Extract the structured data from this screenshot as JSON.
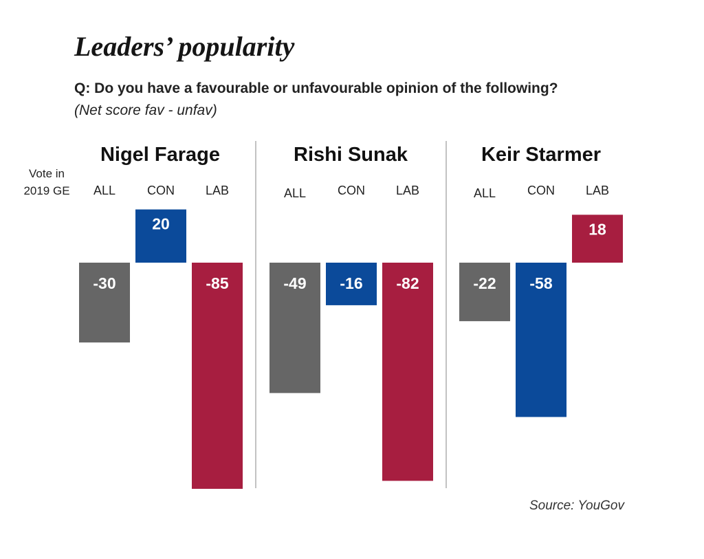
{
  "title": "Leaders’ popularity",
  "question": "Q: Do you have a favourable or unfavourable opinion of the following?",
  "note": "(Net score fav - unfav)",
  "vote_label": [
    "Vote in",
    "2019 GE"
  ],
  "source": "Source: YouGov",
  "colors": {
    "ALL": "#666666",
    "CON": "#0b4a9a",
    "LAB": "#a71e40",
    "divider": "#9a9a9a"
  },
  "chart_data": [
    {
      "type": "bar",
      "title": "Nigel Farage",
      "categories": [
        "ALL",
        "CON",
        "LAB"
      ],
      "values": [
        -30,
        20,
        -85
      ]
    },
    {
      "type": "bar",
      "title": "Rishi Sunak",
      "categories": [
        "ALL",
        "CON",
        "LAB"
      ],
      "values": [
        -49,
        -16,
        -82
      ]
    },
    {
      "type": "bar",
      "title": "Keir Starmer",
      "categories": [
        "ALL",
        "CON",
        "LAB"
      ],
      "values": [
        -22,
        -58,
        18
      ]
    }
  ]
}
